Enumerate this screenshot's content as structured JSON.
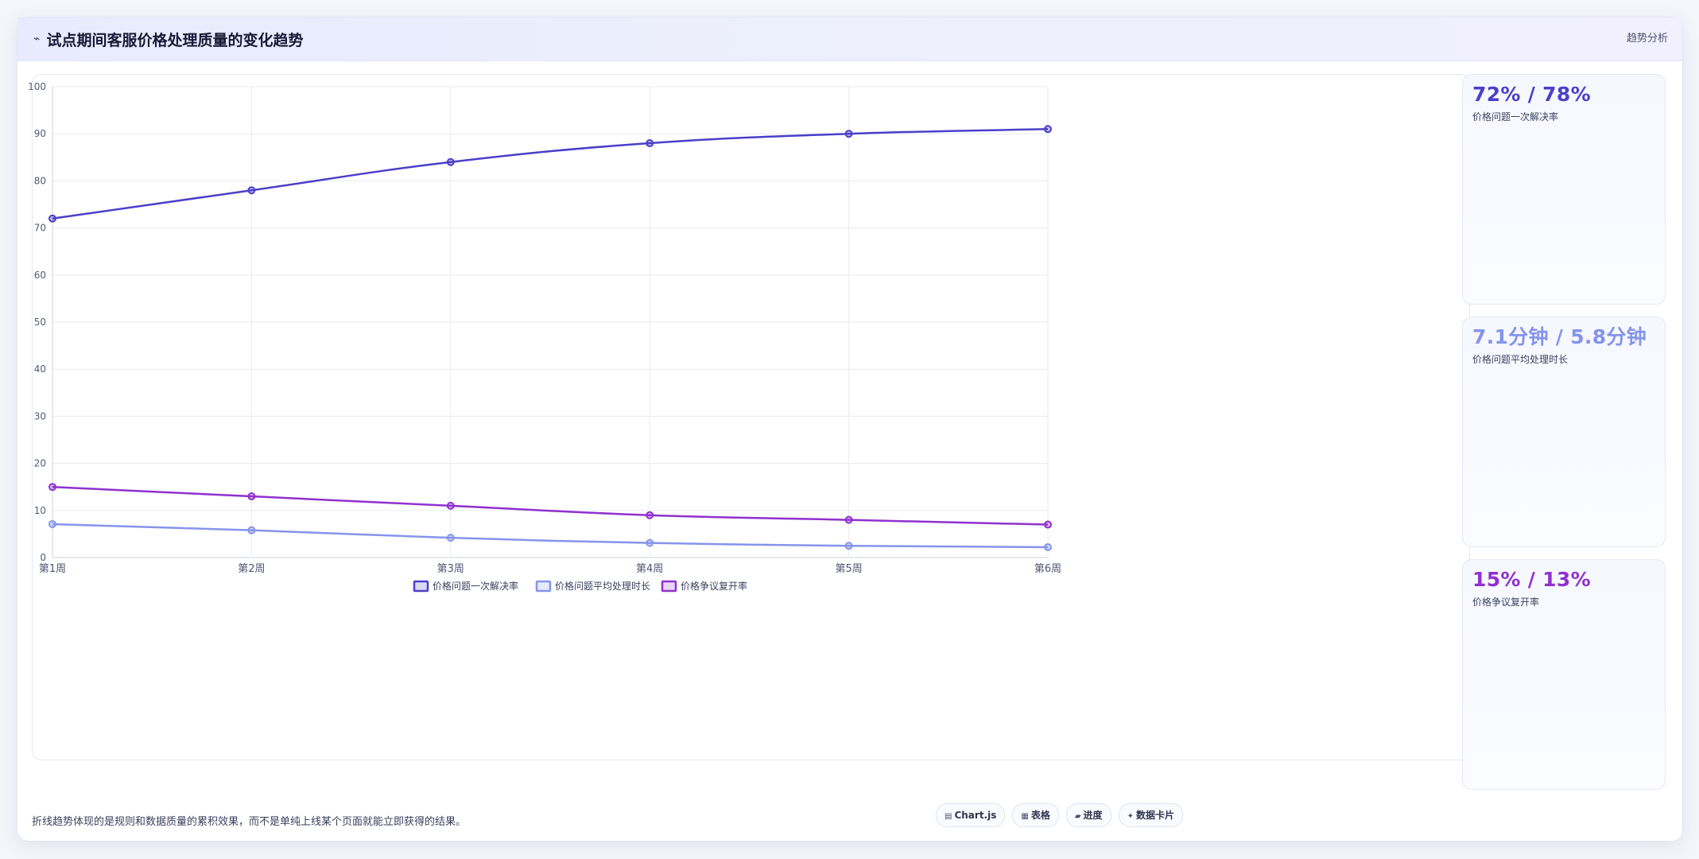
{
  "header": {
    "icon": "trend-line-icon",
    "icon_glyph": "⌁",
    "title": "试点期间客服价格处理质量的变化趋势",
    "tag": "趋势分析"
  },
  "colors": {
    "series_1": "#4b3fc9",
    "series_2": "#8594ea",
    "series_3": "#9130cf",
    "grid": "#e8eaf1",
    "axis": "#cfd3e0"
  },
  "chart_data": {
    "type": "line",
    "categories": [
      "第1周",
      "第2周",
      "第3周",
      "第4周",
      "第5周",
      "第6周"
    ],
    "ylim": [
      0,
      100
    ],
    "yticks": [
      0,
      10,
      20,
      30,
      40,
      50,
      60,
      70,
      80,
      90,
      100
    ],
    "grid": true,
    "legend": "bottom",
    "series": [
      {
        "name": "价格问题一次解决率",
        "values": [
          72,
          78,
          84,
          88,
          90,
          91
        ]
      },
      {
        "name": "价格问题平均处理时长",
        "values": [
          7.1,
          5.8,
          4.2,
          3.1,
          2.5,
          2.2
        ]
      },
      {
        "name": "价格争议复开率",
        "values": [
          15,
          13,
          11,
          9,
          8,
          7
        ]
      }
    ]
  },
  "stats": [
    {
      "value": "72% / 78%",
      "label": "价格问题一次解决率",
      "color": "#4b3fc9"
    },
    {
      "value": "7.1分钟 / 5.8分钟",
      "label": "价格问题平均处理时长",
      "color": "#8594ea"
    },
    {
      "value": "15% / 13%",
      "label": "价格争议复开率",
      "color": "#9130cf"
    }
  ],
  "footer": {
    "note": "折线趋势体现的是规则和数据质量的累积效果，而不是单纯上线某个页面就能立即获得的结果。",
    "chips": [
      {
        "icon": "chart-icon",
        "glyph": "▤",
        "label": "Chart.js"
      },
      {
        "icon": "table-icon",
        "glyph": "▦",
        "label": "表格"
      },
      {
        "icon": "progress-icon",
        "glyph": "▰",
        "label": "进度"
      },
      {
        "icon": "sparkle-icon",
        "glyph": "✦",
        "label": "数据卡片"
      }
    ]
  }
}
